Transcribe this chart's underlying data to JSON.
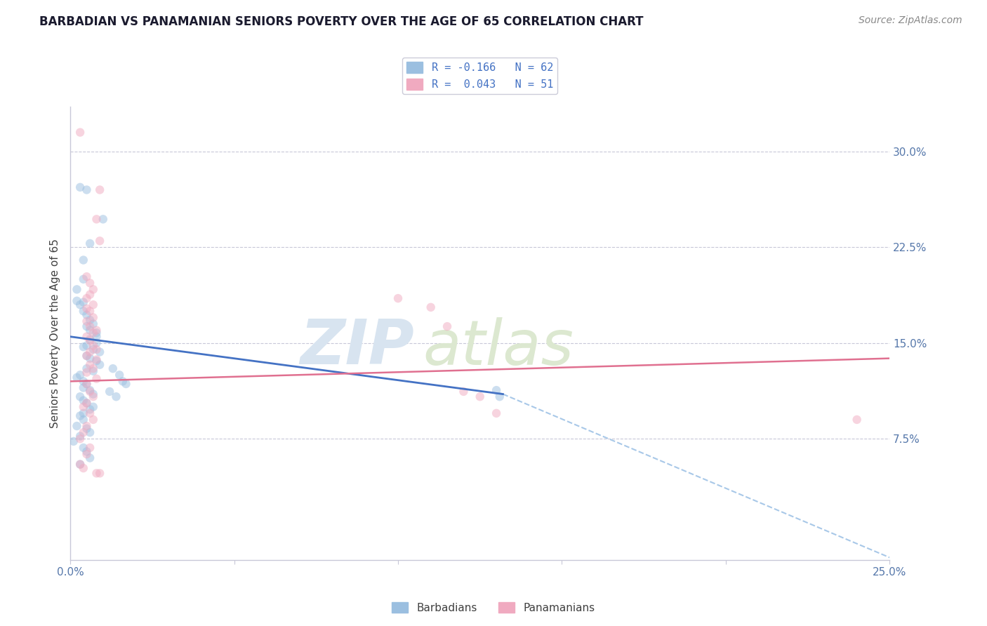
{
  "title": "BARBADIAN VS PANAMANIAN SENIORS POVERTY OVER THE AGE OF 65 CORRELATION CHART",
  "source": "Source: ZipAtlas.com",
  "ylabel": "Seniors Poverty Over the Age of 65",
  "xlim": [
    0,
    0.25
  ],
  "ylim": [
    -0.02,
    0.335
  ],
  "ytick_right_labels": [
    "30.0%",
    "22.5%",
    "15.0%",
    "7.5%"
  ],
  "ytick_right_vals": [
    0.3,
    0.225,
    0.15,
    0.075
  ],
  "barbadian_color": "#9bbfe0",
  "panamanian_color": "#f0aac0",
  "barbadian_line_color": "#4472c4",
  "panamanian_line_color": "#e07090",
  "dashed_line_color": "#a8c8e8",
  "marker_size": 80,
  "marker_alpha": 0.5,
  "grid_color": "#c8c8d8",
  "background_color": "#ffffff",
  "watermark": "ZIPatlas",
  "watermark_color": "#d8e4f0",
  "barbadian_scatter": [
    [
      0.003,
      0.272
    ],
    [
      0.005,
      0.27
    ],
    [
      0.01,
      0.247
    ],
    [
      0.006,
      0.228
    ],
    [
      0.004,
      0.215
    ],
    [
      0.004,
      0.2
    ],
    [
      0.002,
      0.192
    ],
    [
      0.002,
      0.183
    ],
    [
      0.004,
      0.182
    ],
    [
      0.003,
      0.18
    ],
    [
      0.004,
      0.175
    ],
    [
      0.005,
      0.172
    ],
    [
      0.006,
      0.168
    ],
    [
      0.007,
      0.165
    ],
    [
      0.005,
      0.163
    ],
    [
      0.006,
      0.16
    ],
    [
      0.008,
      0.158
    ],
    [
      0.008,
      0.155
    ],
    [
      0.006,
      0.153
    ],
    [
      0.008,
      0.15
    ],
    [
      0.005,
      0.148
    ],
    [
      0.004,
      0.147
    ],
    [
      0.007,
      0.145
    ],
    [
      0.009,
      0.143
    ],
    [
      0.005,
      0.14
    ],
    [
      0.006,
      0.138
    ],
    [
      0.008,
      0.136
    ],
    [
      0.009,
      0.133
    ],
    [
      0.005,
      0.13
    ],
    [
      0.007,
      0.128
    ],
    [
      0.003,
      0.125
    ],
    [
      0.002,
      0.123
    ],
    [
      0.004,
      0.12
    ],
    [
      0.005,
      0.118
    ],
    [
      0.004,
      0.115
    ],
    [
      0.006,
      0.113
    ],
    [
      0.007,
      0.11
    ],
    [
      0.003,
      0.108
    ],
    [
      0.004,
      0.105
    ],
    [
      0.005,
      0.103
    ],
    [
      0.007,
      0.1
    ],
    [
      0.006,
      0.098
    ],
    [
      0.004,
      0.095
    ],
    [
      0.003,
      0.093
    ],
    [
      0.004,
      0.09
    ],
    [
      0.002,
      0.085
    ],
    [
      0.005,
      0.083
    ],
    [
      0.006,
      0.08
    ],
    [
      0.003,
      0.077
    ],
    [
      0.001,
      0.073
    ],
    [
      0.004,
      0.068
    ],
    [
      0.005,
      0.065
    ],
    [
      0.006,
      0.06
    ],
    [
      0.003,
      0.055
    ],
    [
      0.013,
      0.13
    ],
    [
      0.015,
      0.125
    ],
    [
      0.016,
      0.12
    ],
    [
      0.017,
      0.118
    ],
    [
      0.012,
      0.112
    ],
    [
      0.014,
      0.108
    ],
    [
      0.13,
      0.113
    ],
    [
      0.131,
      0.108
    ]
  ],
  "panamanian_scatter": [
    [
      0.003,
      0.315
    ],
    [
      0.009,
      0.27
    ],
    [
      0.008,
      0.247
    ],
    [
      0.009,
      0.23
    ],
    [
      0.005,
      0.202
    ],
    [
      0.006,
      0.197
    ],
    [
      0.007,
      0.192
    ],
    [
      0.006,
      0.188
    ],
    [
      0.005,
      0.185
    ],
    [
      0.007,
      0.18
    ],
    [
      0.005,
      0.177
    ],
    [
      0.006,
      0.175
    ],
    [
      0.007,
      0.17
    ],
    [
      0.005,
      0.167
    ],
    [
      0.006,
      0.163
    ],
    [
      0.008,
      0.16
    ],
    [
      0.007,
      0.158
    ],
    [
      0.005,
      0.155
    ],
    [
      0.006,
      0.152
    ],
    [
      0.007,
      0.148
    ],
    [
      0.008,
      0.145
    ],
    [
      0.006,
      0.143
    ],
    [
      0.005,
      0.14
    ],
    [
      0.008,
      0.137
    ],
    [
      0.006,
      0.133
    ],
    [
      0.007,
      0.13
    ],
    [
      0.005,
      0.127
    ],
    [
      0.008,
      0.122
    ],
    [
      0.005,
      0.118
    ],
    [
      0.006,
      0.112
    ],
    [
      0.007,
      0.108
    ],
    [
      0.005,
      0.103
    ],
    [
      0.004,
      0.1
    ],
    [
      0.006,
      0.095
    ],
    [
      0.007,
      0.09
    ],
    [
      0.005,
      0.085
    ],
    [
      0.004,
      0.08
    ],
    [
      0.003,
      0.075
    ],
    [
      0.006,
      0.068
    ],
    [
      0.005,
      0.063
    ],
    [
      0.003,
      0.055
    ],
    [
      0.004,
      0.052
    ],
    [
      0.008,
      0.048
    ],
    [
      0.009,
      0.048
    ],
    [
      0.1,
      0.185
    ],
    [
      0.11,
      0.178
    ],
    [
      0.115,
      0.163
    ],
    [
      0.12,
      0.112
    ],
    [
      0.125,
      0.108
    ],
    [
      0.13,
      0.095
    ],
    [
      0.24,
      0.09
    ]
  ],
  "barb_reg": [
    0.0,
    0.132,
    0.155,
    0.11
  ],
  "pana_reg": [
    0.0,
    0.25,
    0.12,
    0.138
  ],
  "dashed_reg": [
    0.132,
    0.25,
    0.11,
    -0.018
  ]
}
